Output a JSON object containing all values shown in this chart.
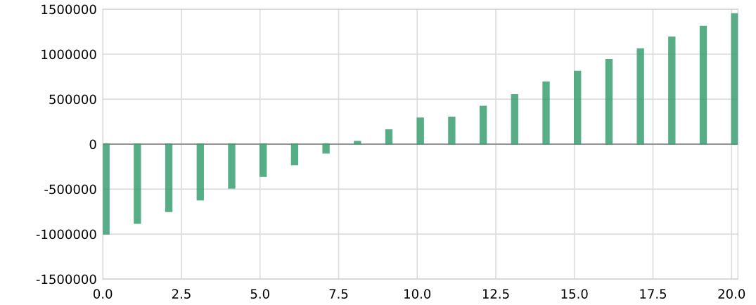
{
  "chart_data": {
    "type": "bar",
    "x": [
      0,
      1,
      2,
      3,
      4,
      5,
      6,
      7,
      8,
      9,
      10,
      11,
      12,
      13,
      14,
      15,
      16,
      17,
      18,
      19,
      20
    ],
    "values": [
      -1000000,
      -880000,
      -750000,
      -620000,
      -490000,
      -360000,
      -230000,
      -100000,
      30000,
      160000,
      290000,
      300000,
      420000,
      550000,
      690000,
      810000,
      940000,
      1060000,
      1190000,
      1310000,
      1450000
    ],
    "color": "#3a9f72",
    "xlim": [
      0,
      20.2
    ],
    "xticks": [
      {
        "value": 0,
        "label": "0.0"
      },
      {
        "value": 2.5,
        "label": "2.5"
      },
      {
        "value": 5,
        "label": "5.0"
      },
      {
        "value": 7.5,
        "label": "7.5"
      },
      {
        "value": 10,
        "label": "10.0"
      },
      {
        "value": 12.5,
        "label": "12.5"
      },
      {
        "value": 15,
        "label": "15.0"
      },
      {
        "value": 17.5,
        "label": "17.5"
      },
      {
        "value": 20,
        "label": "20.0"
      }
    ],
    "ylim": [
      -1500000,
      1500000
    ],
    "yticks": [
      -1500000,
      -1000000,
      -500000,
      0,
      500000,
      1000000,
      1500000
    ],
    "grid": true
  }
}
